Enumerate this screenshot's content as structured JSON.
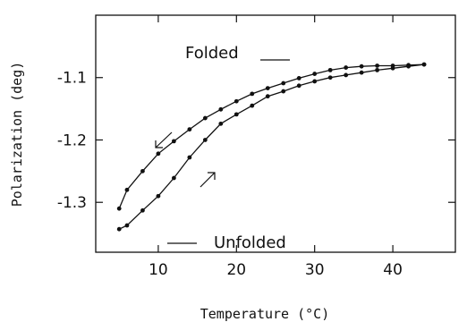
{
  "chart_data": {
    "type": "line",
    "xlabel": "Temperature (°C)",
    "ylabel": "Polarization (deg)",
    "xlim": [
      2,
      48
    ],
    "ylim": [
      -1.38,
      -1.0
    ],
    "x_ticks": [
      10,
      20,
      30,
      40
    ],
    "y_ticks": [
      -1.1,
      -1.2,
      -1.3
    ],
    "series": [
      {
        "x": [
          5,
          6,
          8,
          10,
          12,
          14,
          16,
          18,
          20,
          22,
          24,
          26,
          28,
          30,
          32,
          34,
          36,
          38,
          40,
          42,
          44
        ],
        "y": [
          -1.31,
          -1.28,
          -1.25,
          -1.222,
          -1.202,
          -1.183,
          -1.165,
          -1.151,
          -1.138,
          -1.126,
          -1.117,
          -1.109,
          -1.101,
          -1.094,
          -1.088,
          -1.084,
          -1.082,
          -1.081,
          -1.081,
          -1.08,
          -1.079
        ]
      },
      {
        "x": [
          5,
          6,
          8,
          10,
          12,
          14,
          16,
          18,
          20,
          22,
          24,
          26,
          28,
          30,
          32,
          34,
          36,
          38,
          40,
          42,
          44
        ],
        "y": [
          -1.343,
          -1.337,
          -1.313,
          -1.29,
          -1.261,
          -1.228,
          -1.2,
          -1.174,
          -1.159,
          -1.145,
          -1.13,
          -1.122,
          -1.113,
          -1.106,
          -1.1,
          -1.096,
          -1.092,
          -1.088,
          -1.085,
          -1.082,
          -1.079
        ]
      }
    ],
    "annotations": {
      "folded": "Folded",
      "unfolded": "Unfolded"
    }
  }
}
